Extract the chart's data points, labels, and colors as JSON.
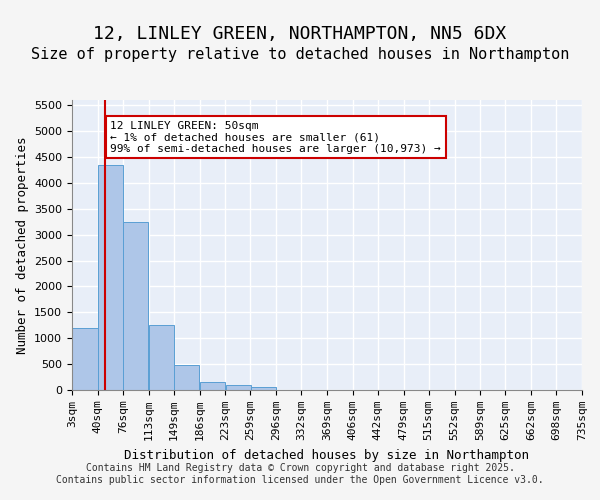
{
  "title_line1": "12, LINLEY GREEN, NORTHAMPTON, NN5 6DX",
  "title_line2": "Size of property relative to detached houses in Northampton",
  "xlabel": "Distribution of detached houses by size in Northampton",
  "ylabel": "Number of detached properties",
  "bar_color": "#aec6e8",
  "bar_edge_color": "#5a9fd4",
  "background_color": "#e8eef8",
  "grid_color": "#ffffff",
  "bins": [
    "3sqm",
    "40sqm",
    "76sqm",
    "113sqm",
    "149sqm",
    "186sqm",
    "223sqm",
    "259sqm",
    "296sqm",
    "332sqm",
    "369sqm",
    "406sqm",
    "442sqm",
    "479sqm",
    "515sqm",
    "552sqm",
    "589sqm",
    "625sqm",
    "662sqm",
    "698sqm",
    "735sqm"
  ],
  "bin_edges": [
    3,
    40,
    76,
    113,
    149,
    186,
    223,
    259,
    296,
    332,
    369,
    406,
    442,
    479,
    515,
    552,
    589,
    625,
    662,
    698,
    735
  ],
  "bar_heights": [
    1200,
    4350,
    3250,
    1250,
    480,
    150,
    100,
    55,
    0,
    0,
    0,
    0,
    0,
    0,
    0,
    0,
    0,
    0,
    0,
    0
  ],
  "ylim": [
    0,
    5600
  ],
  "yticks": [
    0,
    500,
    1000,
    1500,
    2000,
    2500,
    3000,
    3500,
    4000,
    4500,
    5000,
    5500
  ],
  "property_size": 50,
  "property_label": "12 LINLEY GREEN: 50sqm",
  "annotation_line1": "12 LINLEY GREEN: 50sqm",
  "annotation_line2": "← 1% of detached houses are smaller (61)",
  "annotation_line3": "99% of semi-detached houses are larger (10,973) →",
  "red_line_color": "#cc0000",
  "annotation_box_color": "#cc0000",
  "footer_line1": "Contains HM Land Registry data © Crown copyright and database right 2025.",
  "footer_line2": "Contains public sector information licensed under the Open Government Licence v3.0.",
  "title_fontsize": 13,
  "subtitle_fontsize": 11,
  "axis_label_fontsize": 9,
  "tick_fontsize": 8,
  "annotation_fontsize": 8,
  "footer_fontsize": 7
}
